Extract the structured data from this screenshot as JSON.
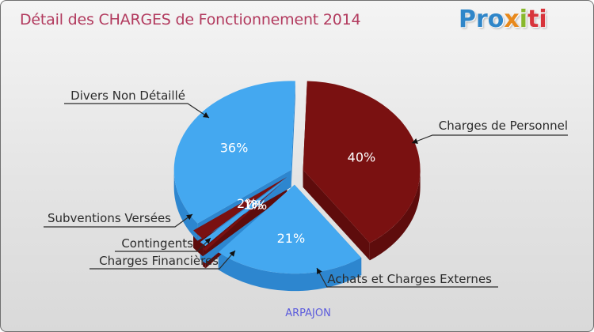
{
  "title": "Détail des CHARGES de Fonctionnement 2014",
  "logo": {
    "p1": "Pro",
    "p2": "x",
    "p3": "i",
    "p4": "ti"
  },
  "colors": {
    "red": "#7a1111",
    "redSide": "#5e0c0c",
    "blue": "#44a8f0",
    "blueSide": "#2d86cf",
    "title": "#b23a5e"
  },
  "chart_data": {
    "type": "pie",
    "title": "Détail des CHARGES de Fonctionnement 2014",
    "subtitle": "ARPAJON",
    "slices": [
      {
        "name": "Charges de Personnel",
        "pct_label": "40%",
        "value": 40,
        "color": "red"
      },
      {
        "name": "Achats et Charges Externes",
        "pct_label": "21%",
        "value": 21,
        "color": "blue"
      },
      {
        "name": "Charges Financières",
        "pct_label": "0%",
        "value": 0.5,
        "color": "red"
      },
      {
        "name": "Contingents",
        "pct_label": "1%",
        "value": 1,
        "color": "blue"
      },
      {
        "name": "Subventions Versées",
        "pct_label": "2%",
        "value": 2,
        "color": "red"
      },
      {
        "name": "Divers Non Détaillé",
        "pct_label": "36%",
        "value": 36,
        "color": "blue"
      }
    ]
  }
}
